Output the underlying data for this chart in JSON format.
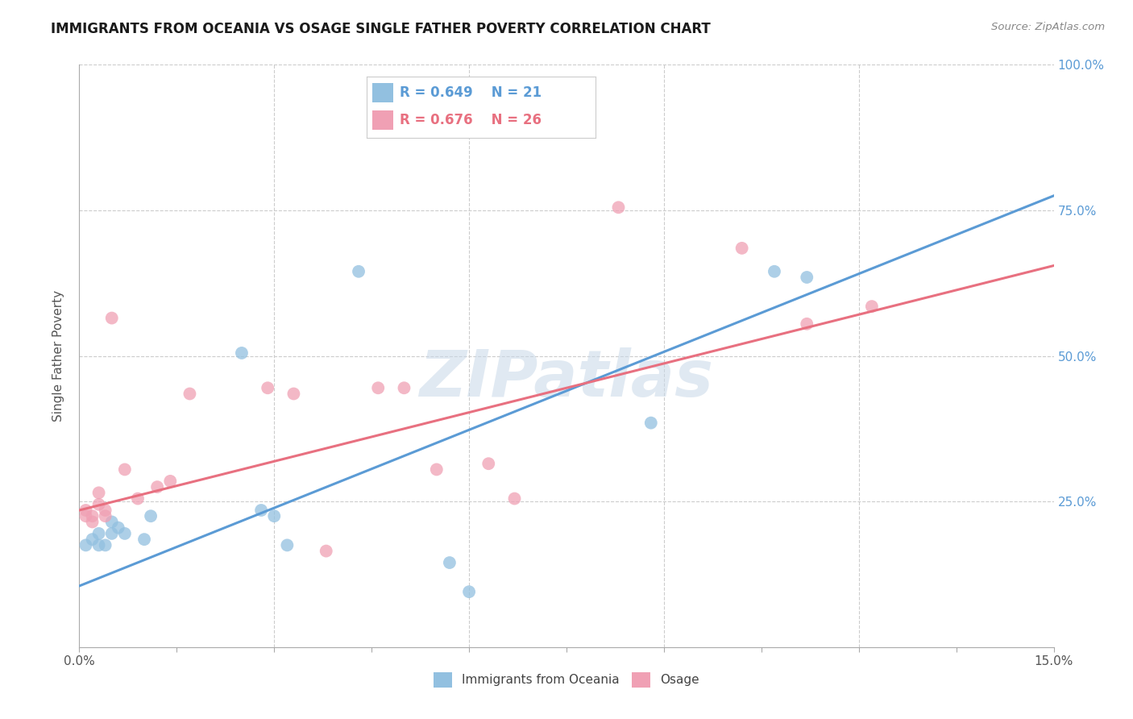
{
  "title": "IMMIGRANTS FROM OCEANIA VS OSAGE SINGLE FATHER POVERTY CORRELATION CHART",
  "source": "Source: ZipAtlas.com",
  "ylabel": "Single Father Poverty",
  "x_tick_positions": [
    0.0,
    0.015,
    0.03,
    0.045,
    0.06,
    0.075,
    0.09,
    0.105,
    0.12,
    0.135,
    0.15
  ],
  "y_tick_positions": [
    0.0,
    0.25,
    0.5,
    0.75,
    1.0
  ],
  "xlim": [
    0.0,
    0.15
  ],
  "ylim": [
    0.0,
    1.0
  ],
  "legend_series": [
    {
      "label": "Immigrants from Oceania",
      "R": "0.649",
      "N": "21",
      "color": "#a8c8e8"
    },
    {
      "label": "Osage",
      "R": "0.676",
      "N": "26",
      "color": "#f0a8b8"
    }
  ],
  "blue_scatter_x": [
    0.001,
    0.002,
    0.003,
    0.003,
    0.004,
    0.005,
    0.005,
    0.006,
    0.007,
    0.01,
    0.011,
    0.025,
    0.028,
    0.03,
    0.032,
    0.043,
    0.057,
    0.06,
    0.088,
    0.107,
    0.112
  ],
  "blue_scatter_y": [
    0.175,
    0.185,
    0.175,
    0.195,
    0.175,
    0.195,
    0.215,
    0.205,
    0.195,
    0.185,
    0.225,
    0.505,
    0.235,
    0.225,
    0.175,
    0.645,
    0.145,
    0.095,
    0.385,
    0.645,
    0.635
  ],
  "pink_scatter_x": [
    0.001,
    0.001,
    0.002,
    0.002,
    0.003,
    0.003,
    0.004,
    0.004,
    0.005,
    0.007,
    0.009,
    0.012,
    0.014,
    0.017,
    0.029,
    0.033,
    0.038,
    0.046,
    0.05,
    0.055,
    0.063,
    0.067,
    0.083,
    0.102,
    0.112,
    0.122
  ],
  "pink_scatter_y": [
    0.225,
    0.235,
    0.225,
    0.215,
    0.245,
    0.265,
    0.235,
    0.225,
    0.565,
    0.305,
    0.255,
    0.275,
    0.285,
    0.435,
    0.445,
    0.435,
    0.165,
    0.445,
    0.445,
    0.305,
    0.315,
    0.255,
    0.755,
    0.685,
    0.555,
    0.585
  ],
  "blue_line_x": [
    0.0,
    0.15
  ],
  "blue_line_y": [
    0.105,
    0.775
  ],
  "pink_line_x": [
    0.0,
    0.15
  ],
  "pink_line_y": [
    0.235,
    0.655
  ],
  "blue_color": "#92C0E0",
  "pink_color": "#F0A0B4",
  "blue_line_color": "#5B9BD5",
  "pink_line_color": "#E87080",
  "watermark_text": "ZIPatlas",
  "background_color": "#ffffff",
  "title_fontsize": 12,
  "marker_size": 130
}
